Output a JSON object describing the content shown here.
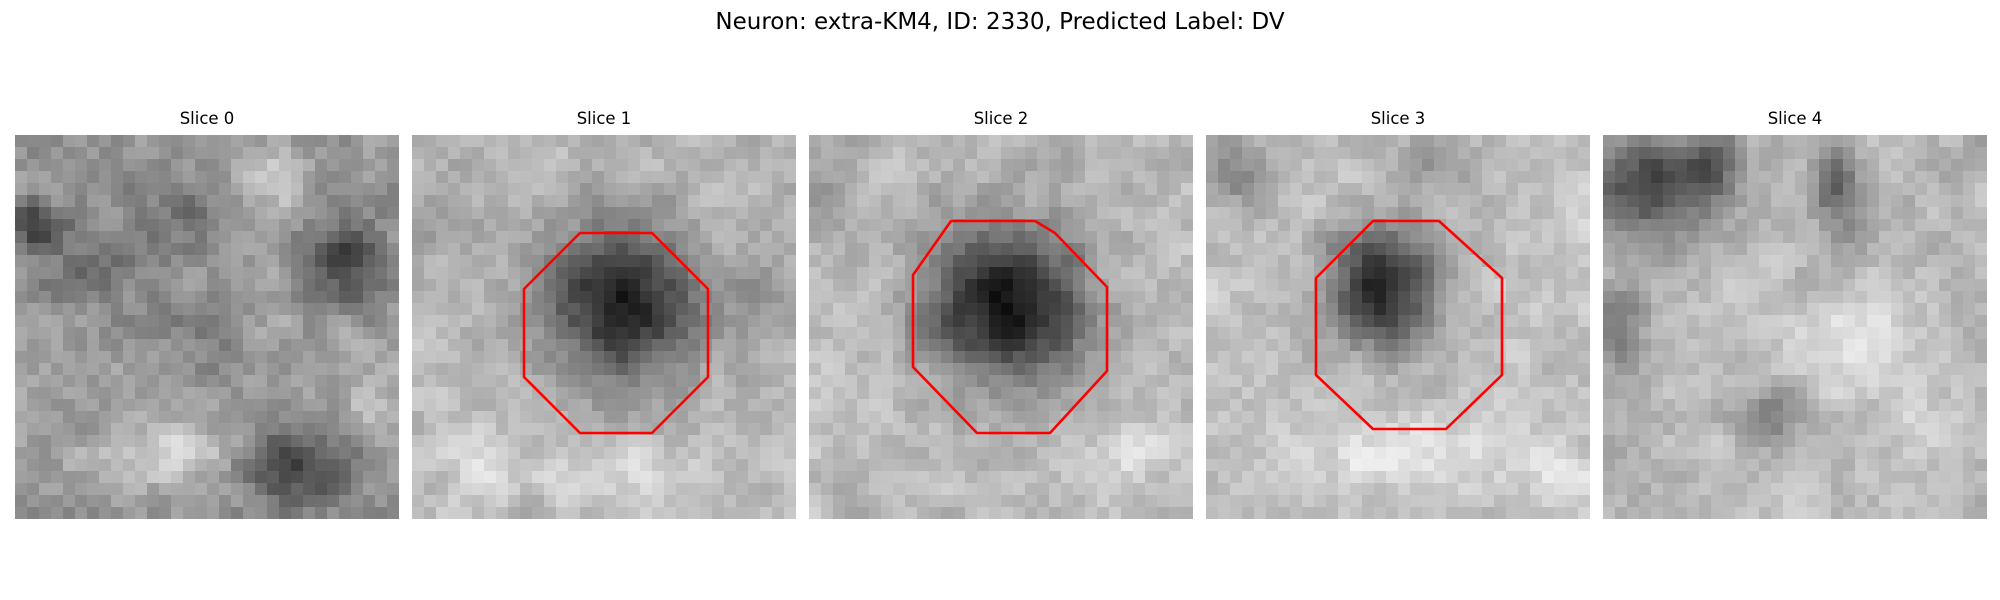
{
  "figure": {
    "title": "Neuron: extra-KM4, ID: 2330, Predicted Label: DV"
  },
  "colors": {
    "contour": "#ff0000",
    "background": "#ffffff"
  },
  "panels": [
    {
      "title": "Slice 0",
      "has_contour": false
    },
    {
      "title": "Slice 1",
      "has_contour": true
    },
    {
      "title": "Slice 2",
      "has_contour": true
    },
    {
      "title": "Slice 3",
      "has_contour": true
    },
    {
      "title": "Slice 4",
      "has_contour": false
    }
  ]
}
